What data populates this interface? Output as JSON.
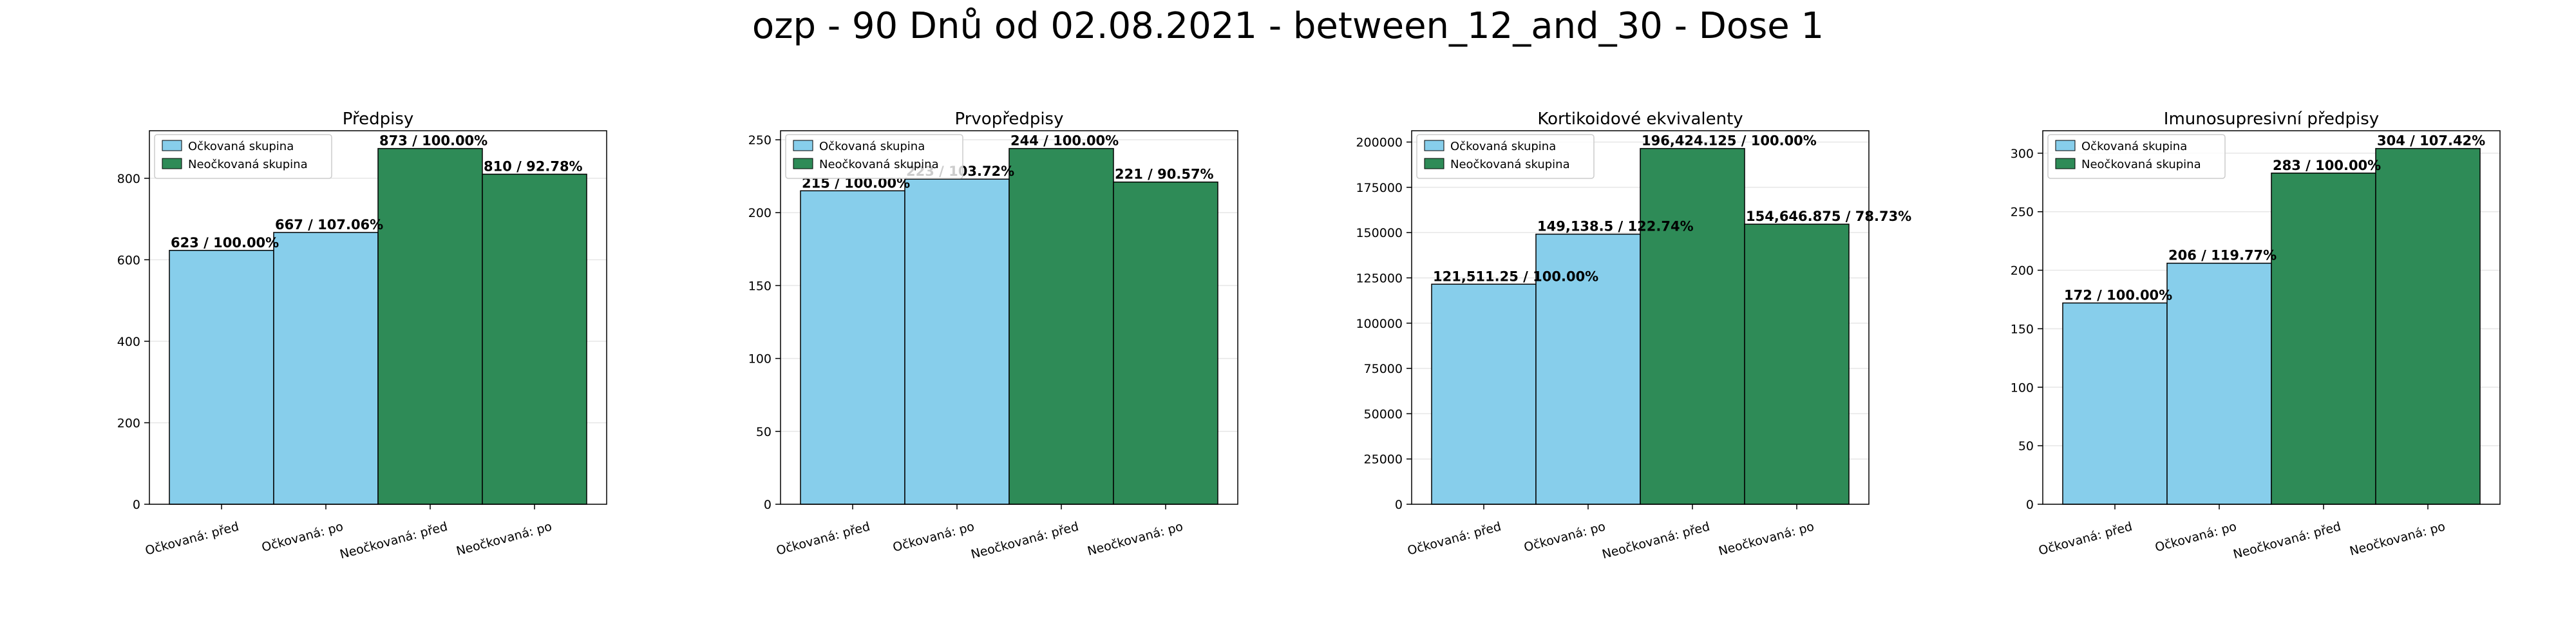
{
  "figure_title": "ozp - 90 Dnů od 02.08.2021 - between_12_and_30 - Dose 1",
  "colors": {
    "vaccinated": "#87ceeb",
    "unvaccinated": "#2e8b57",
    "edge": "#000000",
    "grid": "#e6e6e6"
  },
  "chart_data": [
    {
      "type": "bar",
      "title": "Předpisy",
      "categories": [
        "Očkovaná: před",
        "Očkovaná: po",
        "Neočkovaná: před",
        "Neočkovaná: po"
      ],
      "values": [
        623,
        667,
        873,
        810
      ],
      "bar_labels": [
        "623 / 100.00%",
        "667 / 107.06%",
        "873 / 100.00%",
        "810 / 92.78%"
      ],
      "bar_groups": [
        "vaccinated",
        "vaccinated",
        "unvaccinated",
        "unvaccinated"
      ],
      "yticks": [
        "0",
        "200",
        "400",
        "600",
        "800"
      ],
      "ytick_values": [
        0,
        200,
        400,
        600,
        800
      ],
      "ylim": [
        0,
        916.65
      ],
      "legend": [
        "Očkovaná skupina",
        "Neočkovaná skupina"
      ],
      "legend_position": "top-left",
      "grid": true
    },
    {
      "type": "bar",
      "title": "Prvopředpisy",
      "categories": [
        "Očkovaná: před",
        "Očkovaná: po",
        "Neočkovaná: před",
        "Neočkovaná: po"
      ],
      "values": [
        215,
        223,
        244,
        221
      ],
      "bar_labels": [
        "215 / 100.00%",
        "223 / 103.72%",
        "244 / 100.00%",
        "221 / 90.57%"
      ],
      "bar_groups": [
        "vaccinated",
        "vaccinated",
        "unvaccinated",
        "unvaccinated"
      ],
      "yticks": [
        "0",
        "50",
        "100",
        "150",
        "200",
        "250"
      ],
      "ytick_values": [
        0,
        50,
        100,
        150,
        200,
        250
      ],
      "ylim": [
        0,
        256.2
      ],
      "legend": [
        "Očkovaná skupina",
        "Neočkovaná skupina"
      ],
      "legend_position": "top-left",
      "grid": true
    },
    {
      "type": "bar",
      "title": "Kortikoidové ekvivalenty",
      "categories": [
        "Očkovaná: před",
        "Očkovaná: po",
        "Neočkovaná: před",
        "Neočkovaná: po"
      ],
      "values": [
        121511.25,
        149138.5,
        196424.125,
        154646.875
      ],
      "bar_labels": [
        "121,511.25 / 100.00%",
        "149,138.5 / 122.74%",
        "196,424.125 / 100.00%",
        "154,646.875 / 78.73%"
      ],
      "bar_groups": [
        "vaccinated",
        "vaccinated",
        "unvaccinated",
        "unvaccinated"
      ],
      "yticks": [
        "0",
        "25000",
        "50000",
        "75000",
        "100000",
        "125000",
        "150000",
        "175000",
        "200000"
      ],
      "ytick_values": [
        0,
        25000,
        50000,
        75000,
        100000,
        125000,
        150000,
        175000,
        200000
      ],
      "ylim": [
        0,
        206245.3
      ],
      "legend": [
        "Očkovaná skupina",
        "Neočkovaná skupina"
      ],
      "legend_position": "top-left",
      "grid": true
    },
    {
      "type": "bar",
      "title": "Imunosupresivní předpisy",
      "categories": [
        "Očkovaná: před",
        "Očkovaná: po",
        "Neočkovaná: před",
        "Neočkovaná: po"
      ],
      "values": [
        172,
        206,
        283,
        304
      ],
      "bar_labels": [
        "172 / 100.00%",
        "206 / 119.77%",
        "283 / 100.00%",
        "304 / 107.42%"
      ],
      "bar_groups": [
        "vaccinated",
        "vaccinated",
        "unvaccinated",
        "unvaccinated"
      ],
      "yticks": [
        "0",
        "50",
        "100",
        "150",
        "200",
        "250",
        "300"
      ],
      "ytick_values": [
        0,
        50,
        100,
        150,
        200,
        250,
        300
      ],
      "ylim": [
        0,
        319.2
      ],
      "legend": [
        "Očkovaná skupina",
        "Neočkovaná skupina"
      ],
      "legend_position": "top-left",
      "grid": true
    }
  ]
}
